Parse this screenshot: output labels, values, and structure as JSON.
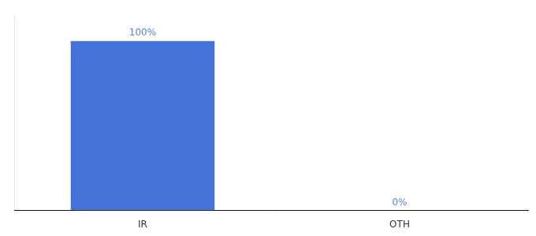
{
  "chart_data": {
    "type": "bar",
    "categories": [
      "IR",
      "OTH"
    ],
    "values": [
      100,
      0
    ],
    "value_labels": [
      "100%",
      "0%"
    ],
    "color": "#4472d9",
    "ylim": [
      0,
      115
    ],
    "grid": false,
    "data_labels": true,
    "tick_labels": "x"
  }
}
